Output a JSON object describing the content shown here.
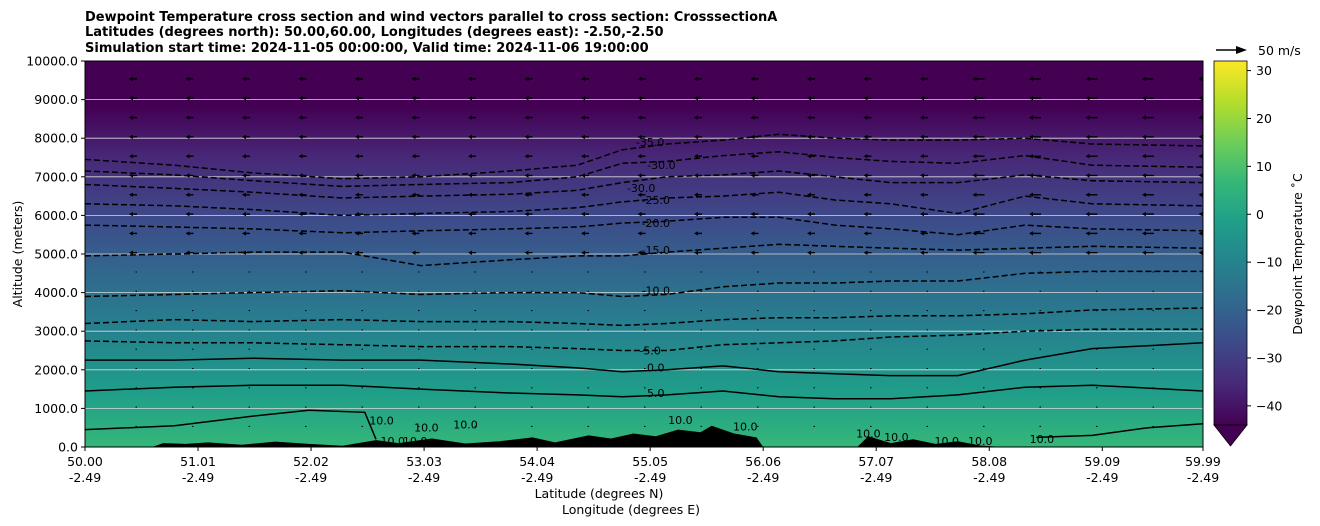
{
  "title_lines": [
    "Dewpoint Temperature cross section and wind vectors parallel to cross section: CrosssectionA",
    "Latitudes (degrees north): 50.00,60.00, Longitudes (degrees east): -2.50,-2.50",
    "Simulation start time: 2024-11-05 00:00:00, Valid time: 2024-11-06 19:00:00"
  ],
  "quiver_key": "50 m/s",
  "colors": {
    "viridis": [
      "#440154",
      "#482878",
      "#3e4989",
      "#31688e",
      "#26828e",
      "#1f9e89",
      "#35b779",
      "#6ece58",
      "#b5de2b",
      "#fde725"
    ],
    "terrain": "#000000",
    "grid": "#d9d9d9"
  },
  "chart_data": {
    "type": "contourf",
    "xlabel_lat": "Latitude (degrees N)",
    "xlabel_lon": "Longitude (degrees E)",
    "ylabel": "Altitude (meters)",
    "xlim": [
      50.0,
      59.99
    ],
    "ylim": [
      0,
      10000
    ],
    "x_ticks": [
      {
        "lat": "50.00",
        "lon": "-2.49",
        "v": 50.0
      },
      {
        "lat": "51.01",
        "lon": "-2.49",
        "v": 51.01
      },
      {
        "lat": "52.02",
        "lon": "-2.49",
        "v": 52.02
      },
      {
        "lat": "53.03",
        "lon": "-2.49",
        "v": 53.03
      },
      {
        "lat": "54.04",
        "lon": "-2.49",
        "v": 54.04
      },
      {
        "lat": "55.05",
        "lon": "-2.49",
        "v": 55.05
      },
      {
        "lat": "56.06",
        "lon": "-2.49",
        "v": 56.06
      },
      {
        "lat": "57.07",
        "lon": "-2.49",
        "v": 57.07
      },
      {
        "lat": "58.08",
        "lon": "-2.49",
        "v": 58.08
      },
      {
        "lat": "59.09",
        "lon": "-2.49",
        "v": 59.09
      },
      {
        "lat": "59.99",
        "lon": "-2.49",
        "v": 59.99
      }
    ],
    "y_ticks": [
      "0.0",
      "1000.0",
      "2000.0",
      "3000.0",
      "4000.0",
      "5000.0",
      "6000.0",
      "7000.0",
      "8000.0",
      "9000.0",
      "10000.0"
    ],
    "grid_y": true,
    "colorbar": {
      "label": "Dewpoint Temperature $^\\circ$C",
      "label_text": "Dewpoint Temperature ˚C",
      "range": [
        -44,
        32
      ],
      "extend": "min",
      "ticks": [
        "30",
        "20",
        "10",
        "0",
        "−10",
        "−20",
        "−30",
        "−40"
      ],
      "tick_values": [
        30,
        20,
        10,
        0,
        -10,
        -20,
        -30,
        -40
      ]
    },
    "contour_labels": [
      {
        "text": "-35.0",
        "x": 55.05,
        "y": 7800,
        "level": -35
      },
      {
        "text": "-30.0",
        "x": 55.15,
        "y": 7200,
        "level": -30
      },
      {
        "text": "-30.0",
        "x": 54.97,
        "y": 6600,
        "level": -30
      },
      {
        "text": "-25.0",
        "x": 55.1,
        "y": 6300,
        "level": -25
      },
      {
        "text": "-20.0",
        "x": 55.1,
        "y": 5700,
        "level": -20
      },
      {
        "text": "-15.0",
        "x": 55.1,
        "y": 5000,
        "level": -15
      },
      {
        "text": "-10.0",
        "x": 55.1,
        "y": 3950,
        "level": -10
      },
      {
        "text": "-5.0",
        "x": 55.05,
        "y": 2400,
        "level": -5
      },
      {
        "text": "0.0",
        "x": 55.1,
        "y": 1950,
        "level": 0
      },
      {
        "text": "5.0",
        "x": 55.1,
        "y": 1300,
        "level": 5
      },
      {
        "text": "10.0",
        "x": 52.65,
        "y": 580,
        "level": 10
      },
      {
        "text": "10.0",
        "x": 53.05,
        "y": 400,
        "level": 10
      },
      {
        "text": "10.0",
        "x": 52.75,
        "y": 50,
        "level": 10
      },
      {
        "text": "10.0",
        "x": 52.95,
        "y": 50,
        "level": 10
      },
      {
        "text": "10.0",
        "x": 53.4,
        "y": 480,
        "level": 10
      },
      {
        "text": "10.0",
        "x": 55.32,
        "y": 600,
        "level": 10
      },
      {
        "text": "10.0",
        "x": 55.9,
        "y": 430,
        "level": 10
      },
      {
        "text": "10.0",
        "x": 57.0,
        "y": 250,
        "level": 10
      },
      {
        "text": "10.0",
        "x": 57.25,
        "y": 150,
        "level": 10
      },
      {
        "text": "10.0",
        "x": 57.7,
        "y": 50,
        "level": 10
      },
      {
        "text": "10.0",
        "x": 58.0,
        "y": 50,
        "level": 10
      },
      {
        "text": "10.0",
        "x": 58.55,
        "y": 100,
        "level": 10
      }
    ],
    "contour_lines": [
      {
        "level": -35,
        "style": "dashed",
        "points": [
          [
            50.0,
            7450
          ],
          [
            50.8,
            7300
          ],
          [
            51.5,
            7100
          ],
          [
            52.3,
            6950
          ],
          [
            53.0,
            7000
          ],
          [
            53.8,
            7150
          ],
          [
            54.4,
            7300
          ],
          [
            54.8,
            7700
          ],
          [
            55.2,
            7850
          ],
          [
            55.7,
            7950
          ],
          [
            56.2,
            8100
          ],
          [
            56.7,
            8000
          ],
          [
            57.2,
            7950
          ],
          [
            57.8,
            7950
          ],
          [
            58.4,
            8000
          ],
          [
            59.0,
            7850
          ],
          [
            59.99,
            7800
          ]
        ]
      },
      {
        "level": -30,
        "style": "dashed",
        "points": [
          [
            50.0,
            7150
          ],
          [
            50.8,
            7050
          ],
          [
            51.5,
            6900
          ],
          [
            52.3,
            6750
          ],
          [
            53.0,
            6800
          ],
          [
            53.8,
            6850
          ],
          [
            54.4,
            7000
          ],
          [
            54.8,
            7350
          ],
          [
            55.2,
            7400
          ],
          [
            55.7,
            7550
          ],
          [
            56.2,
            7650
          ],
          [
            56.7,
            7500
          ],
          [
            57.2,
            7400
          ],
          [
            57.8,
            7350
          ],
          [
            58.4,
            7550
          ],
          [
            59.0,
            7300
          ],
          [
            59.99,
            7250
          ]
        ]
      },
      {
        "level": -30,
        "style": "dashed",
        "points": [
          [
            50.0,
            6800
          ],
          [
            50.8,
            6700
          ],
          [
            51.5,
            6600
          ],
          [
            52.3,
            6450
          ],
          [
            53.0,
            6500
          ],
          [
            53.8,
            6550
          ],
          [
            54.4,
            6650
          ],
          [
            54.8,
            6850
          ],
          [
            55.2,
            7000
          ],
          [
            55.7,
            7050
          ],
          [
            56.2,
            7150
          ],
          [
            56.7,
            7000
          ],
          [
            57.2,
            6850
          ],
          [
            57.8,
            6850
          ],
          [
            58.4,
            7050
          ],
          [
            59.0,
            6900
          ],
          [
            59.99,
            6850
          ]
        ]
      },
      {
        "level": -25,
        "style": "dashed",
        "points": [
          [
            50.0,
            6300
          ],
          [
            50.8,
            6250
          ],
          [
            51.5,
            6150
          ],
          [
            52.3,
            6000
          ],
          [
            53.0,
            6050
          ],
          [
            53.8,
            6100
          ],
          [
            54.4,
            6200
          ],
          [
            54.8,
            6350
          ],
          [
            55.2,
            6450
          ],
          [
            55.7,
            6500
          ],
          [
            56.2,
            6600
          ],
          [
            56.7,
            6400
          ],
          [
            57.2,
            6300
          ],
          [
            57.8,
            6050
          ],
          [
            58.4,
            6500
          ],
          [
            59.0,
            6300
          ],
          [
            59.99,
            6250
          ]
        ]
      },
      {
        "level": -20,
        "style": "dashed",
        "points": [
          [
            50.0,
            5750
          ],
          [
            50.8,
            5700
          ],
          [
            51.5,
            5650
          ],
          [
            52.3,
            5550
          ],
          [
            53.0,
            5600
          ],
          [
            53.8,
            5650
          ],
          [
            54.4,
            5700
          ],
          [
            54.8,
            5800
          ],
          [
            55.2,
            5850
          ],
          [
            55.7,
            5950
          ],
          [
            56.2,
            5950
          ],
          [
            56.7,
            5750
          ],
          [
            57.2,
            5650
          ],
          [
            57.8,
            5500
          ],
          [
            58.4,
            5750
          ],
          [
            59.0,
            5650
          ],
          [
            59.99,
            5600
          ]
        ]
      },
      {
        "level": -15,
        "style": "dashed",
        "points": [
          [
            50.0,
            4950
          ],
          [
            50.8,
            5000
          ],
          [
            51.5,
            5050
          ],
          [
            52.3,
            5050
          ],
          [
            53.0,
            4700
          ],
          [
            53.8,
            4850
          ],
          [
            54.4,
            4950
          ],
          [
            54.8,
            4950
          ],
          [
            55.2,
            5050
          ],
          [
            55.7,
            5150
          ],
          [
            56.2,
            5250
          ],
          [
            56.7,
            5200
          ],
          [
            57.2,
            5150
          ],
          [
            57.8,
            5100
          ],
          [
            58.4,
            5150
          ],
          [
            59.0,
            5200
          ],
          [
            59.99,
            5150
          ]
        ]
      },
      {
        "level": -10,
        "style": "dashed",
        "points": [
          [
            50.0,
            3900
          ],
          [
            50.8,
            3950
          ],
          [
            51.5,
            4000
          ],
          [
            52.3,
            4050
          ],
          [
            53.0,
            3950
          ],
          [
            53.8,
            4000
          ],
          [
            54.4,
            4000
          ],
          [
            54.8,
            3900
          ],
          [
            55.2,
            3950
          ],
          [
            55.7,
            4150
          ],
          [
            56.2,
            4250
          ],
          [
            56.7,
            4250
          ],
          [
            57.2,
            4300
          ],
          [
            57.8,
            4300
          ],
          [
            58.4,
            4500
          ],
          [
            59.0,
            4550
          ],
          [
            59.99,
            4550
          ]
        ]
      },
      {
        "level": -5,
        "style": "dashed",
        "points": [
          [
            50.0,
            3200
          ],
          [
            50.8,
            3300
          ],
          [
            51.5,
            3250
          ],
          [
            52.3,
            3300
          ],
          [
            53.0,
            3250
          ],
          [
            53.8,
            3250
          ],
          [
            54.4,
            3200
          ],
          [
            54.8,
            3150
          ],
          [
            55.2,
            3200
          ],
          [
            55.7,
            3300
          ],
          [
            56.2,
            3350
          ],
          [
            56.7,
            3350
          ],
          [
            57.2,
            3400
          ],
          [
            57.8,
            3400
          ],
          [
            58.4,
            3450
          ],
          [
            59.0,
            3550
          ],
          [
            59.99,
            3600
          ]
        ]
      },
      {
        "level": -5,
        "style": "dashed",
        "points": [
          [
            50.0,
            2750
          ],
          [
            50.8,
            2700
          ],
          [
            51.5,
            2700
          ],
          [
            52.3,
            2650
          ],
          [
            53.0,
            2600
          ],
          [
            53.8,
            2600
          ],
          [
            54.4,
            2550
          ],
          [
            54.8,
            2500
          ],
          [
            55.2,
            2500
          ],
          [
            55.7,
            2650
          ],
          [
            56.2,
            2700
          ],
          [
            56.7,
            2750
          ],
          [
            57.2,
            2850
          ],
          [
            57.8,
            2900
          ],
          [
            58.4,
            3000
          ],
          [
            59.0,
            3050
          ],
          [
            59.99,
            3050
          ]
        ]
      },
      {
        "level": 0,
        "style": "solid",
        "points": [
          [
            50.0,
            2250
          ],
          [
            50.8,
            2250
          ],
          [
            51.5,
            2300
          ],
          [
            52.3,
            2250
          ],
          [
            53.0,
            2250
          ],
          [
            53.8,
            2150
          ],
          [
            54.4,
            2050
          ],
          [
            54.8,
            1950
          ],
          [
            55.2,
            2000
          ],
          [
            55.7,
            2100
          ],
          [
            56.2,
            1950
          ],
          [
            56.7,
            1900
          ],
          [
            57.2,
            1850
          ],
          [
            57.8,
            1850
          ],
          [
            58.4,
            2250
          ],
          [
            59.0,
            2550
          ],
          [
            59.99,
            2700
          ]
        ]
      },
      {
        "level": 5,
        "style": "solid",
        "points": [
          [
            50.0,
            1450
          ],
          [
            50.8,
            1550
          ],
          [
            51.5,
            1600
          ],
          [
            52.3,
            1600
          ],
          [
            53.0,
            1500
          ],
          [
            53.8,
            1400
          ],
          [
            54.4,
            1350
          ],
          [
            54.8,
            1300
          ],
          [
            55.2,
            1350
          ],
          [
            55.7,
            1450
          ],
          [
            56.2,
            1300
          ],
          [
            56.7,
            1250
          ],
          [
            57.2,
            1250
          ],
          [
            57.8,
            1350
          ],
          [
            58.4,
            1550
          ],
          [
            59.0,
            1600
          ],
          [
            59.99,
            1450
          ]
        ]
      },
      {
        "level": 10,
        "style": "solid",
        "points": [
          [
            50.0,
            450
          ],
          [
            50.8,
            550
          ],
          [
            51.5,
            800
          ],
          [
            52.0,
            950
          ],
          [
            52.5,
            900
          ],
          [
            52.6,
            200
          ]
        ]
      },
      {
        "level": 10,
        "style": "solid",
        "points": [
          [
            58.5,
            250
          ],
          [
            59.0,
            300
          ],
          [
            59.5,
            500
          ],
          [
            59.99,
            600
          ]
        ]
      }
    ]
  }
}
